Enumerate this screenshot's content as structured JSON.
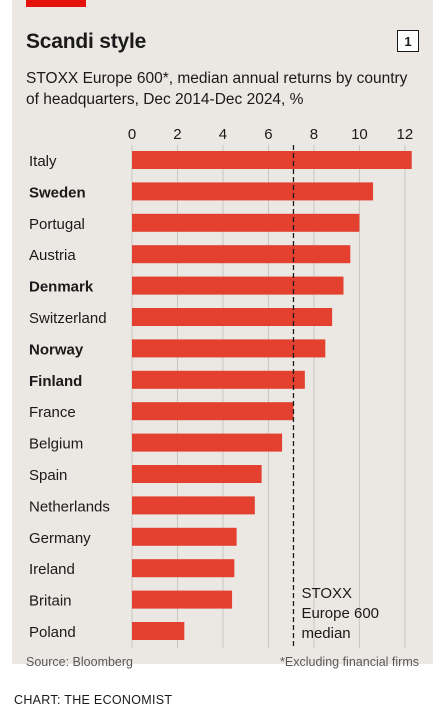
{
  "chart_data": {
    "type": "bar",
    "orientation": "horizontal",
    "title": "Scandi style",
    "subtitle": "STOXX Europe 600*, median annual returns by country of headquarters, Dec 2014-Dec 2024, %",
    "badge": "1",
    "categories": [
      "Italy",
      "Sweden",
      "Portugal",
      "Austria",
      "Denmark",
      "Switzerland",
      "Norway",
      "Finland",
      "France",
      "Belgium",
      "Spain",
      "Netherlands",
      "Germany",
      "Ireland",
      "Britain",
      "Poland"
    ],
    "bold_categories": [
      "Sweden",
      "Denmark",
      "Norway",
      "Finland"
    ],
    "values": [
      12.3,
      10.6,
      10.0,
      9.6,
      9.3,
      8.8,
      8.5,
      7.6,
      7.1,
      6.6,
      5.7,
      5.4,
      4.6,
      4.5,
      4.4,
      2.3
    ],
    "xlim": [
      0,
      12.4
    ],
    "xticks": [
      0,
      2,
      4,
      6,
      8,
      10,
      12
    ],
    "xtick_labels": [
      "0",
      "2",
      "4",
      "6",
      "8",
      "10",
      "12"
    ],
    "reference_line": {
      "value": 7.1,
      "label_lines": [
        "STOXX",
        "Europe 600",
        "median"
      ]
    },
    "bar_color": "#e3402f",
    "accent_color": "#e3120b",
    "background_color": "#ebe8e4",
    "source": "Source: Bloomberg",
    "footnote": "*Excluding financial firms",
    "credit": "CHART: THE ECONOMIST"
  }
}
